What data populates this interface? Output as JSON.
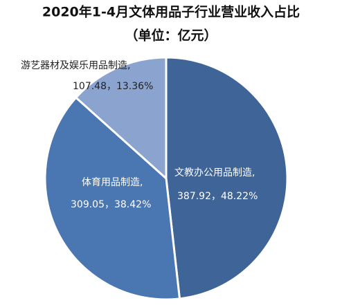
{
  "chart_data": {
    "type": "pie",
    "title": "2020年1-4月文体用品子行业营业收入占比",
    "subtitle": "（单位：亿元）",
    "categories": [
      "文教办公用品制造,",
      "体育用品制造,",
      "游艺器材及娱乐用品制造,"
    ],
    "values": [
      387.92,
      309.05,
      107.48
    ],
    "value_labels": [
      "387.92，48.22%",
      "309.05，38.42%",
      "107.48，13.36%"
    ],
    "colors": [
      "#3f6497",
      "#4a77b1",
      "#8aa3cf"
    ]
  }
}
